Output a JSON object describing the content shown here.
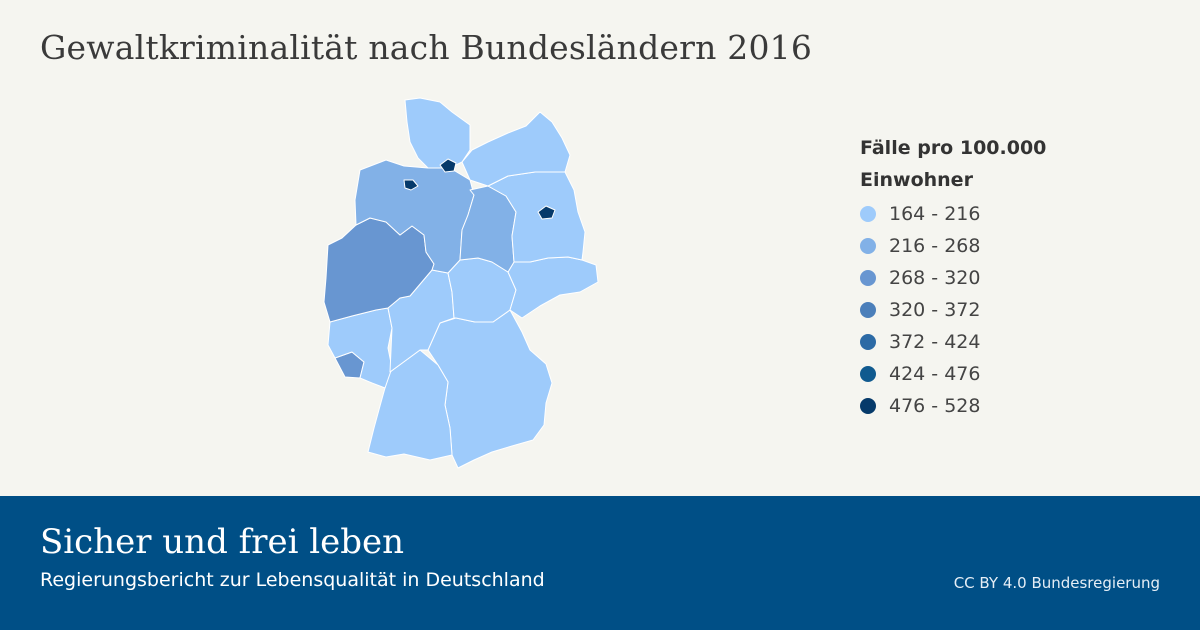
{
  "title": "Gewaltkriminalität nach Bundesländern 2016",
  "legend": {
    "title_line1": "Fälle pro 100.000",
    "title_line2": "Einwohner",
    "classes": [
      {
        "label": "164 - 216",
        "color": "#9ecbfb"
      },
      {
        "label": "216 - 268",
        "color": "#82b1e7"
      },
      {
        "label": "268 - 320",
        "color": "#6896d1"
      },
      {
        "label": "320 - 372",
        "color": "#4b7fba"
      },
      {
        "label": "372 - 424",
        "color": "#2c6aa5"
      },
      {
        "label": "424 - 476",
        "color": "#105a8f"
      },
      {
        "label": "476 - 528",
        "color": "#063a6a"
      }
    ]
  },
  "map_data": {
    "type": "choropleth",
    "region": "Deutschland",
    "states": [
      {
        "id": "schleswig-holstein",
        "class": 0
      },
      {
        "id": "hamburg",
        "class": 6
      },
      {
        "id": "mecklenburg-vorpommern",
        "class": 0
      },
      {
        "id": "niedersachsen",
        "class": 1
      },
      {
        "id": "bremen",
        "class": 6
      },
      {
        "id": "berlin",
        "class": 6
      },
      {
        "id": "brandenburg",
        "class": 0
      },
      {
        "id": "sachsen-anhalt",
        "class": 1
      },
      {
        "id": "nordrhein-westfalen",
        "class": 2
      },
      {
        "id": "hessen",
        "class": 0
      },
      {
        "id": "thueringen",
        "class": 0
      },
      {
        "id": "sachsen",
        "class": 0
      },
      {
        "id": "rheinland-pfalz",
        "class": 0
      },
      {
        "id": "saarland",
        "class": 2
      },
      {
        "id": "baden-wuerttemberg",
        "class": 0
      },
      {
        "id": "bayern",
        "class": 0
      }
    ]
  },
  "footer": {
    "title": "Sicher und frei leben",
    "subtitle": "Regierungsbericht zur Lebensqualität in Deutschland",
    "credit": "CC BY 4.0 Bundesregierung"
  }
}
